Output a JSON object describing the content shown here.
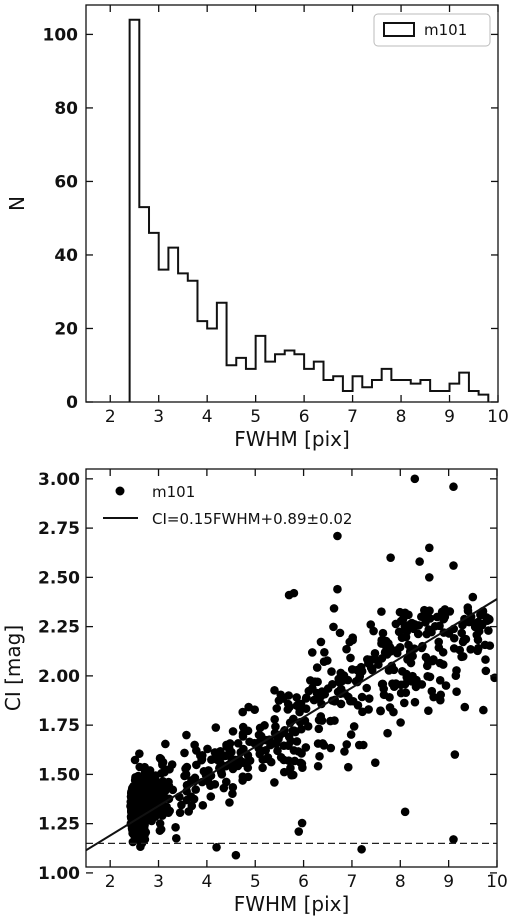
{
  "chart_data": [
    {
      "type": "histogram",
      "xlabel": "FWHM [pix]",
      "ylabel": "N",
      "xlim": [
        1.5,
        10
      ],
      "ylim": [
        0,
        108
      ],
      "xticks": [
        "2",
        "3",
        "4",
        "5",
        "6",
        "7",
        "8",
        "9",
        "10"
      ],
      "yticks": [
        "0",
        "20",
        "40",
        "60",
        "80",
        "100"
      ],
      "legend": {
        "label": "m101",
        "position": "top-right"
      },
      "bin_edges": [
        2.4,
        2.6,
        2.8,
        3.0,
        3.2,
        3.4,
        3.6,
        3.8,
        4.0,
        4.2,
        4.4,
        4.6,
        4.8,
        5.0,
        5.2,
        5.4,
        5.6,
        5.8,
        6.0,
        6.2,
        6.4,
        6.6,
        6.8,
        7.0,
        7.2,
        7.4,
        7.6,
        7.8,
        8.0,
        8.2,
        8.4,
        8.6,
        8.8,
        9.0,
        9.2,
        9.4,
        9.6,
        9.8
      ],
      "counts": [
        104,
        53,
        46,
        36,
        42,
        35,
        33,
        22,
        20,
        27,
        10,
        12,
        9,
        18,
        11,
        13,
        14,
        13,
        9,
        11,
        6,
        7,
        3,
        7,
        4,
        6,
        9,
        6,
        6,
        5,
        6,
        3,
        3,
        5,
        8,
        3,
        2
      ]
    },
    {
      "type": "scatter",
      "xlabel": "FWHM [pix]",
      "ylabel": "CI [mag]",
      "xlim": [
        1.5,
        10
      ],
      "ylim": [
        1.03,
        3.05
      ],
      "xticks": [
        "2",
        "3",
        "4",
        "5",
        "6",
        "7",
        "8",
        "9",
        "10"
      ],
      "yticks": [
        "1.00",
        "1.25",
        "1.50",
        "1.75",
        "2.00",
        "2.25",
        "2.50",
        "2.75",
        "3.00"
      ],
      "legend": {
        "position": "top-left",
        "entries": [
          "m101",
          "CI=0.15FWHM+0.89±0.02"
        ]
      },
      "fit_line": {
        "slope": 0.15,
        "intercept": 0.89
      },
      "reference_line": {
        "y": 1.15,
        "style": "dashed"
      },
      "outliers": [
        [
          8.3,
          3.0
        ],
        [
          9.1,
          2.96
        ],
        [
          6.7,
          2.71
        ],
        [
          8.6,
          2.65
        ],
        [
          8.4,
          2.58
        ],
        [
          7.8,
          2.6
        ],
        [
          9.1,
          2.56
        ],
        [
          8.6,
          2.5
        ],
        [
          5.7,
          2.41
        ],
        [
          5.8,
          2.42
        ],
        [
          6.7,
          2.44
        ],
        [
          9.5,
          2.4
        ],
        [
          8.1,
          2.32
        ],
        [
          9.4,
          2.33
        ],
        [
          9.8,
          2.28
        ],
        [
          8.9,
          2.22
        ],
        [
          8.1,
          1.31
        ],
        [
          7.2,
          1.12
        ],
        [
          9.1,
          1.17
        ],
        [
          5.9,
          1.21
        ],
        [
          4.6,
          1.09
        ],
        [
          4.2,
          1.13
        ],
        [
          9.95,
          1.99
        ]
      ]
    }
  ]
}
